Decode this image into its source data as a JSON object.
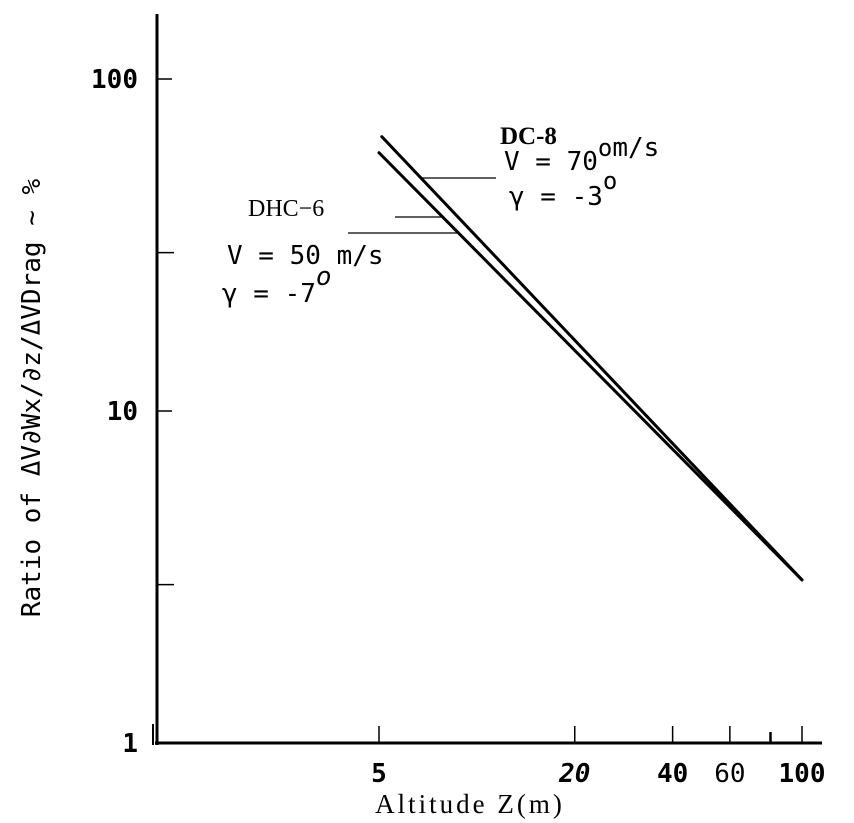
{
  "chart_data": {
    "type": "line",
    "title": "",
    "xlabel": "Altitude Z(m)",
    "ylabel": "Ratio of ΔV∂Wx/∂z/ΔVDrag ~ %",
    "x_scale": "log",
    "y_scale": "log",
    "xlim": [
      2.2,
      110
    ],
    "ylim": [
      1,
      170
    ],
    "x_tick_labels": [
      {
        "value": 5,
        "label": "5"
      },
      {
        "value": 20,
        "label": "20"
      },
      {
        "value": 40,
        "label": "40"
      },
      {
        "value": 60,
        "label": "60"
      },
      {
        "value": 100,
        "label": "100"
      }
    ],
    "x_minor_ticks": [
      80
    ],
    "y_tick_labels": [
      {
        "value": 1,
        "label": "1"
      },
      {
        "value": 10,
        "label": "10"
      },
      {
        "value": 100,
        "label": "100"
      }
    ],
    "y_minor_ticks": [
      3,
      30
    ],
    "grid": false,
    "legend": "none",
    "series": [
      {
        "name": "DC-8",
        "x": [
          5.1,
          100
        ],
        "y": [
          67,
          3.1
        ]
      },
      {
        "name": "DHC-6",
        "x": [
          5.0,
          100
        ],
        "y": [
          60,
          3.1
        ]
      }
    ],
    "annotations": {
      "dc8": {
        "name": "DC-8",
        "line1_prefix": "V = 70",
        "line1_sup": "o",
        "line1_suffix": "m/s",
        "line2_prefix": "γ = -3",
        "line2_sup": "o"
      },
      "dhc6": {
        "name": "DHC−6",
        "line1": "V = 50 m/s",
        "line2_prefix": "γ = -7",
        "line2_sup": "o"
      }
    }
  },
  "colors": {
    "ink": "#000000",
    "background": "#ffffff"
  }
}
